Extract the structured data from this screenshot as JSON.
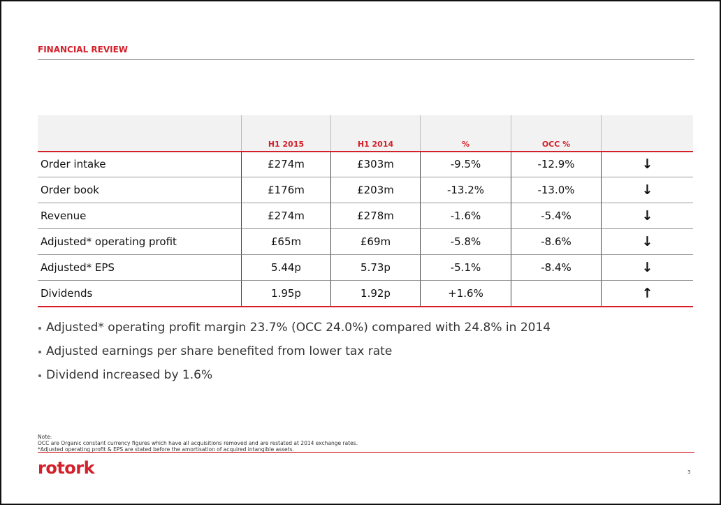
{
  "header": {
    "title": "FINANCIAL REVIEW"
  },
  "table": {
    "columns": [
      "H1 2015",
      "H1 2014",
      "%",
      "OCC %"
    ],
    "rows": [
      {
        "label": "Order intake",
        "cells": [
          "£274m",
          "£303m",
          "-9.5%",
          "-12.9%"
        ],
        "trend": "↓"
      },
      {
        "label": "Order book",
        "cells": [
          "£176m",
          "£203m",
          "-13.2%",
          "-13.0%"
        ],
        "trend": "↓"
      },
      {
        "label": "Revenue",
        "cells": [
          "£274m",
          "£278m",
          "-1.6%",
          "-5.4%"
        ],
        "trend": "↓"
      },
      {
        "label": "Adjusted* operating profit",
        "cells": [
          "£65m",
          "£69m",
          "-5.8%",
          "-8.6%"
        ],
        "trend": "↓"
      },
      {
        "label": "Adjusted* EPS",
        "cells": [
          "5.44p",
          "5.73p",
          "-5.1%",
          "-8.4%"
        ],
        "trend": "↓"
      },
      {
        "label": "Dividends",
        "cells": [
          "1.95p",
          "1.92p",
          "+1.6%",
          null
        ],
        "trend": "↑"
      }
    ]
  },
  "bullets": [
    "Adjusted* operating profit margin 23.7% (OCC 24.0%) compared with 24.8% in 2014",
    "Adjusted earnings per share benefited from lower tax rate",
    "Dividend increased by 1.6%"
  ],
  "note": [
    "Note:",
    "OCC are Organic constant currency figures which have all acquisitions removed and are restated at 2014 exchange rates.",
    "*Adjusted operating profit & EPS are stated before the amortisation of acquired intangible assets."
  ],
  "footer": {
    "logo": "rotork",
    "page": "3"
  }
}
